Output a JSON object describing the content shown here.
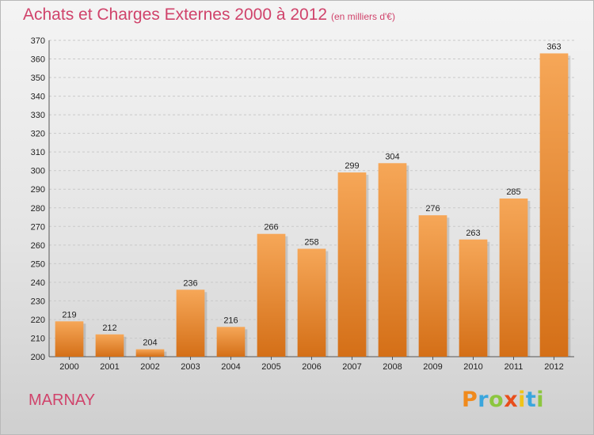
{
  "title": "Achats et Charges Externes 2000 à 2012",
  "subtitle": "(en milliers d'€)",
  "place": "MARNAY",
  "logo": {
    "letters": [
      "P",
      "r",
      "o",
      "x",
      "i",
      "t",
      "i"
    ],
    "colors": [
      "#f08a1c",
      "#3aa6dd",
      "#8cc63f",
      "#e84e1b",
      "#f0c419",
      "#3aa6dd",
      "#8cc63f"
    ]
  },
  "colors": {
    "bar_top": "#f6a758",
    "bar_bottom": "#d46f17",
    "text_accent": "#d0436b"
  },
  "chart_data": {
    "type": "bar",
    "categories": [
      "2000",
      "2001",
      "2002",
      "2003",
      "2004",
      "2005",
      "2006",
      "2007",
      "2008",
      "2009",
      "2010",
      "2011",
      "2012"
    ],
    "values": [
      219,
      212,
      204,
      236,
      216,
      266,
      258,
      299,
      304,
      276,
      263,
      285,
      363
    ],
    "ylim": [
      200,
      370
    ],
    "yticks": [
      200,
      210,
      220,
      230,
      240,
      250,
      260,
      270,
      280,
      290,
      300,
      310,
      320,
      330,
      340,
      350,
      360,
      370
    ],
    "grid": true,
    "data_labels": true
  }
}
